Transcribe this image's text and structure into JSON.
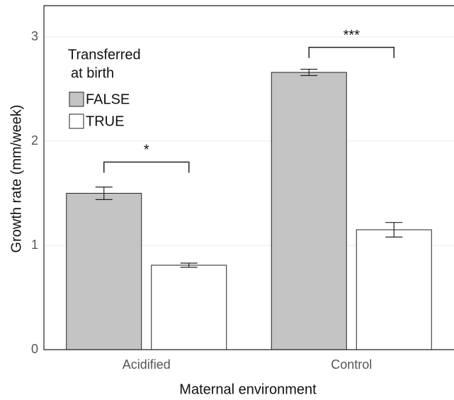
{
  "chart_data": {
    "type": "bar",
    "x_label": "Maternal environment",
    "y_label": "Growth rate (mm/week)",
    "categories": [
      "Acidified",
      "Control"
    ],
    "legend_title": [
      "Transferred",
      "at birth"
    ],
    "series": [
      {
        "name": "FALSE",
        "color": "#c4c4c4",
        "values": [
          1.5,
          2.66
        ],
        "errors": [
          0.06,
          0.03
        ]
      },
      {
        "name": "TRUE",
        "color": "#ffffff",
        "values": [
          0.81,
          1.15
        ],
        "errors": [
          0.02,
          0.07
        ]
      }
    ],
    "annotations": [
      {
        "text": "*",
        "y": 1.8
      },
      {
        "text": "***",
        "y": 2.9
      }
    ],
    "ylim": [
      0,
      3.3
    ],
    "yticks": [
      0,
      1,
      2,
      3
    ],
    "grid": true
  }
}
